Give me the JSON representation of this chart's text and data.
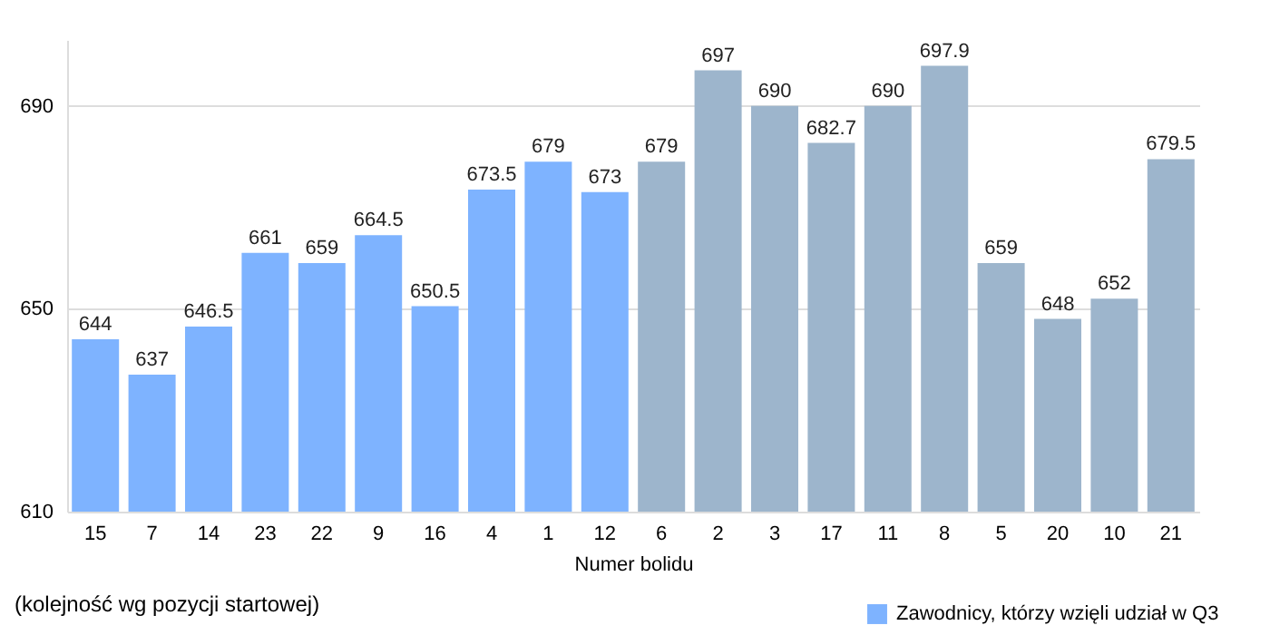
{
  "chart_data": {
    "type": "bar",
    "xlabel": "Numer bolidu",
    "categories": [
      "15",
      "7",
      "14",
      "23",
      "22",
      "9",
      "16",
      "4",
      "1",
      "12",
      "6",
      "2",
      "3",
      "17",
      "11",
      "8",
      "5",
      "20",
      "10",
      "21"
    ],
    "series": [
      {
        "name": "Zawodnicy, którzy wzięli udział w Q3",
        "color": "#7eb3ff",
        "values": [
          644,
          637,
          646.5,
          661,
          659,
          664.5,
          650.5,
          673.5,
          679,
          673,
          null,
          null,
          null,
          null,
          null,
          null,
          null,
          null,
          null,
          null
        ]
      },
      {
        "color": "#9db5cc",
        "values": [
          null,
          null,
          null,
          null,
          null,
          null,
          null,
          null,
          null,
          null,
          679,
          697,
          690,
          682.7,
          690,
          697.9,
          659,
          648,
          652,
          679.5
        ]
      }
    ],
    "ylim": [
      610,
      703
    ],
    "yticks": [
      610,
      650,
      690
    ],
    "grid": "y",
    "legend": "bottom right",
    "data_labels": true,
    "annotations": [
      "(kolejność wg pozycji startowej)"
    ]
  }
}
